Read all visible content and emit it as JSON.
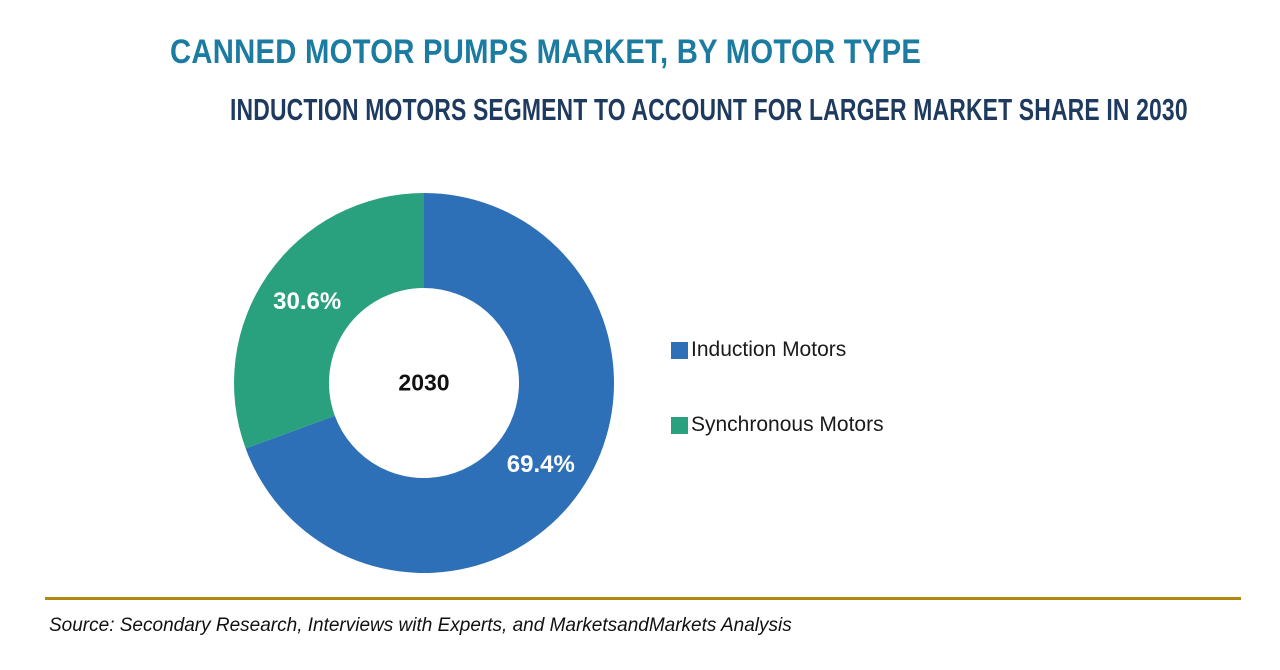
{
  "header": {
    "title": "CANNED MOTOR PUMPS MARKET, BY MOTOR TYPE",
    "title_color": "#1b7ba1",
    "subtitle": "INDUCTION MOTORS SEGMENT TO ACCOUNT FOR LARGER MARKET SHARE IN 2030",
    "subtitle_color": "#1f3a5f"
  },
  "chart_data": {
    "type": "pie",
    "variant": "donut",
    "title": "CANNED MOTOR PUMPS MARKET, BY MOTOR TYPE",
    "center_label": "2030",
    "categories": [
      "Induction Motors",
      "Synchronous Motors"
    ],
    "values": [
      69.4,
      30.6
    ],
    "labels": [
      "69.4%",
      "30.6%"
    ],
    "colors": [
      "#2e70b7",
      "#2aa17e"
    ],
    "start_angle_deg": 0,
    "direction": "clockwise",
    "inner_radius_ratio": 0.5,
    "legend_position": "right"
  },
  "footer": {
    "divider_color": "#b1880e",
    "source": "Source: Secondary Research, Interviews with Experts, and MarketsandMarkets Analysis"
  }
}
